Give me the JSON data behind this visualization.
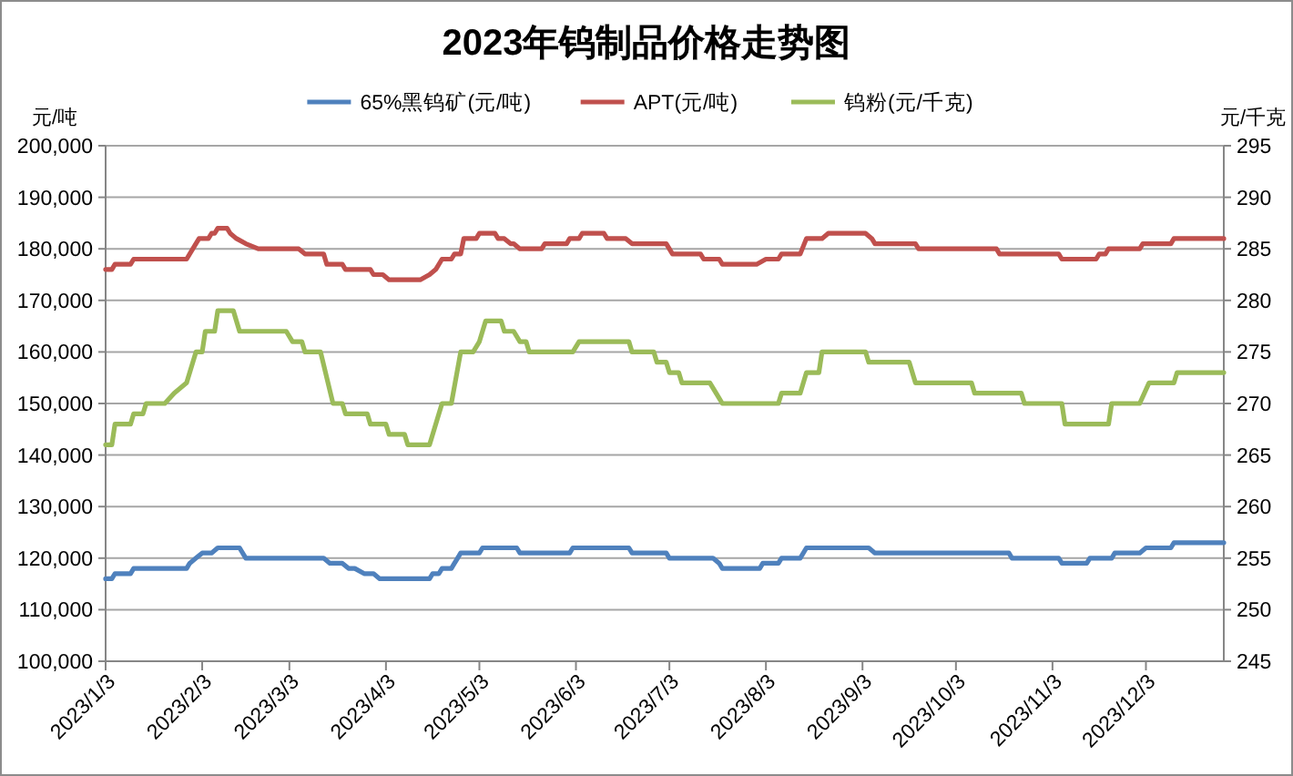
{
  "chart_data": {
    "type": "line",
    "title": "2023年钨制品价格走势图",
    "ylabel": "元/吨",
    "y2label": "元/千克",
    "legend": "top",
    "grid": "y",
    "xlim": [
      "2023-01-03",
      "2023-12-28"
    ],
    "xticks": [
      {
        "value": "2023-01-03",
        "label": "2023/1/3"
      },
      {
        "value": "2023-02-03",
        "label": "2023/2/3"
      },
      {
        "value": "2023-03-03",
        "label": "2023/3/3"
      },
      {
        "value": "2023-04-03",
        "label": "2023/4/3"
      },
      {
        "value": "2023-05-03",
        "label": "2023/5/3"
      },
      {
        "value": "2023-06-03",
        "label": "2023/6/3"
      },
      {
        "value": "2023-07-03",
        "label": "2023/7/3"
      },
      {
        "value": "2023-08-03",
        "label": "2023/8/3"
      },
      {
        "value": "2023-09-03",
        "label": "2023/9/3"
      },
      {
        "value": "2023-10-03",
        "label": "2023/10/3"
      },
      {
        "value": "2023-11-03",
        "label": "2023/11/3"
      },
      {
        "value": "2023-12-03",
        "label": "2023/12/3"
      }
    ],
    "ylim": [
      100000,
      200000
    ],
    "yticks": [
      {
        "value": 100000,
        "label": "100,000"
      },
      {
        "value": 110000,
        "label": "110,000"
      },
      {
        "value": 120000,
        "label": "120,000"
      },
      {
        "value": 130000,
        "label": "130,000"
      },
      {
        "value": 140000,
        "label": "140,000"
      },
      {
        "value": 150000,
        "label": "150,000"
      },
      {
        "value": 160000,
        "label": "160,000"
      },
      {
        "value": 170000,
        "label": "170,000"
      },
      {
        "value": 180000,
        "label": "180,000"
      },
      {
        "value": 190000,
        "label": "190,000"
      },
      {
        "value": 200000,
        "label": "200,000"
      }
    ],
    "y2lim": [
      245,
      295
    ],
    "y2ticks": [
      245,
      250,
      255,
      260,
      265,
      270,
      275,
      280,
      285,
      290,
      295
    ],
    "series": [
      {
        "name": "65%黑钨矿(元/吨)",
        "color": "#4f81bd",
        "x": [
          "2023-01-03",
          "2023-01-05",
          "2023-01-06",
          "2023-01-11",
          "2023-01-12",
          "2023-01-29",
          "2023-01-30",
          "2023-02-01",
          "2023-02-03",
          "2023-02-06",
          "2023-02-08",
          "2023-02-15",
          "2023-02-17",
          "2023-03-14",
          "2023-03-16",
          "2023-03-20",
          "2023-03-22",
          "2023-03-24",
          "2023-03-27",
          "2023-03-30",
          "2023-04-01",
          "2023-04-17",
          "2023-04-18",
          "2023-04-20",
          "2023-04-21",
          "2023-04-24",
          "2023-04-25",
          "2023-04-26",
          "2023-04-27",
          "2023-05-03",
          "2023-05-04",
          "2023-05-15",
          "2023-05-16",
          "2023-06-01",
          "2023-06-02",
          "2023-06-20",
          "2023-06-21",
          "2023-07-02",
          "2023-07-03",
          "2023-07-17",
          "2023-07-19",
          "2023-07-20",
          "2023-08-01",
          "2023-08-02",
          "2023-08-07",
          "2023-08-08",
          "2023-08-14",
          "2023-08-16",
          "2023-09-05",
          "2023-09-07",
          "2023-10-20",
          "2023-10-21",
          "2023-11-05",
          "2023-11-06",
          "2023-11-14",
          "2023-11-15",
          "2023-11-22",
          "2023-11-23",
          "2023-12-01",
          "2023-12-03",
          "2023-12-11",
          "2023-12-12",
          "2023-12-28"
        ],
        "values": [
          116000,
          116000,
          117000,
          117000,
          118000,
          118000,
          119000,
          120000,
          121000,
          121000,
          122000,
          122000,
          120000,
          120000,
          119000,
          119000,
          118000,
          118000,
          117000,
          117000,
          116000,
          116000,
          117000,
          117000,
          118000,
          118000,
          119000,
          120000,
          121000,
          121000,
          122000,
          122000,
          121000,
          121000,
          122000,
          122000,
          121000,
          121000,
          120000,
          120000,
          119000,
          118000,
          118000,
          119000,
          119000,
          120000,
          120000,
          122000,
          122000,
          121000,
          121000,
          120000,
          120000,
          119000,
          119000,
          120000,
          120000,
          121000,
          121000,
          122000,
          122000,
          123000,
          123000
        ]
      },
      {
        "name": "APT(元/吨)",
        "color": "#c0504d",
        "x": [
          "2023-01-03",
          "2023-01-05",
          "2023-01-06",
          "2023-01-11",
          "2023-01-12",
          "2023-01-29",
          "2023-01-31",
          "2023-02-02",
          "2023-02-05",
          "2023-02-06",
          "2023-02-07",
          "2023-02-08",
          "2023-02-11",
          "2023-02-12",
          "2023-02-14",
          "2023-02-17",
          "2023-02-21",
          "2023-03-06",
          "2023-03-08",
          "2023-03-14",
          "2023-03-15",
          "2023-03-20",
          "2023-03-21",
          "2023-03-29",
          "2023-03-30",
          "2023-04-02",
          "2023-04-04",
          "2023-04-14",
          "2023-04-17",
          "2023-04-19",
          "2023-04-21",
          "2023-04-24",
          "2023-04-25",
          "2023-04-27",
          "2023-04-28",
          "2023-05-02",
          "2023-05-03",
          "2023-05-08",
          "2023-05-09",
          "2023-05-11",
          "2023-05-13",
          "2023-05-14",
          "2023-05-16",
          "2023-05-23",
          "2023-05-24",
          "2023-05-31",
          "2023-06-01",
          "2023-06-04",
          "2023-06-05",
          "2023-06-12",
          "2023-06-13",
          "2023-06-19",
          "2023-06-21",
          "2023-07-02",
          "2023-07-04",
          "2023-07-13",
          "2023-07-14",
          "2023-07-19",
          "2023-07-20",
          "2023-07-31",
          "2023-08-03",
          "2023-08-07",
          "2023-08-08",
          "2023-08-14",
          "2023-08-16",
          "2023-08-21",
          "2023-08-23",
          "2023-09-04",
          "2023-09-06",
          "2023-09-07",
          "2023-09-20",
          "2023-09-21",
          "2023-10-16",
          "2023-10-17",
          "2023-11-05",
          "2023-11-06",
          "2023-11-17",
          "2023-11-18",
          "2023-11-20",
          "2023-11-21",
          "2023-12-01",
          "2023-12-02",
          "2023-12-11",
          "2023-12-12",
          "2023-12-28"
        ],
        "values": [
          176000,
          176000,
          177000,
          177000,
          178000,
          178000,
          180000,
          182000,
          182000,
          183000,
          183000,
          184000,
          184000,
          183000,
          182000,
          181000,
          180000,
          180000,
          179000,
          179000,
          177000,
          177000,
          176000,
          176000,
          175000,
          175000,
          174000,
          174000,
          175000,
          176000,
          178000,
          178000,
          179000,
          179000,
          182000,
          182000,
          183000,
          183000,
          182000,
          182000,
          181000,
          181000,
          180000,
          180000,
          181000,
          181000,
          182000,
          182000,
          183000,
          183000,
          182000,
          182000,
          181000,
          181000,
          179000,
          179000,
          178000,
          178000,
          177000,
          177000,
          178000,
          178000,
          179000,
          179000,
          182000,
          182000,
          183000,
          183000,
          182000,
          181000,
          181000,
          180000,
          180000,
          179000,
          179000,
          178000,
          178000,
          179000,
          179000,
          180000,
          180000,
          181000,
          181000,
          182000,
          182000
        ]
      },
      {
        "name": "钨粉(元/千克)",
        "color": "#9bbb59",
        "axis": "y2",
        "x": [
          "2023-01-03",
          "2023-01-05",
          "2023-01-06",
          "2023-01-11",
          "2023-01-12",
          "2023-01-15",
          "2023-01-16",
          "2023-01-22",
          "2023-01-25",
          "2023-01-29",
          "2023-02-01",
          "2023-02-03",
          "2023-02-04",
          "2023-02-07",
          "2023-02-08",
          "2023-02-13",
          "2023-02-15",
          "2023-03-02",
          "2023-03-04",
          "2023-03-07",
          "2023-03-08",
          "2023-03-13",
          "2023-03-17",
          "2023-03-20",
          "2023-03-21",
          "2023-03-28",
          "2023-03-29",
          "2023-04-03",
          "2023-04-04",
          "2023-04-09",
          "2023-04-10",
          "2023-04-17",
          "2023-04-21",
          "2023-04-24",
          "2023-04-27",
          "2023-05-01",
          "2023-05-03",
          "2023-05-05",
          "2023-05-10",
          "2023-05-11",
          "2023-05-14",
          "2023-05-16",
          "2023-05-18",
          "2023-05-19",
          "2023-06-02",
          "2023-06-04",
          "2023-06-20",
          "2023-06-21",
          "2023-06-28",
          "2023-06-29",
          "2023-07-02",
          "2023-07-03",
          "2023-07-06",
          "2023-07-07",
          "2023-07-16",
          "2023-07-18",
          "2023-07-20",
          "2023-08-07",
          "2023-08-08",
          "2023-08-14",
          "2023-08-16",
          "2023-08-20",
          "2023-08-21",
          "2023-09-04",
          "2023-09-05",
          "2023-09-18",
          "2023-09-20",
          "2023-10-08",
          "2023-10-09",
          "2023-10-24",
          "2023-10-25",
          "2023-11-06",
          "2023-11-07",
          "2023-11-21",
          "2023-11-22",
          "2023-12-01",
          "2023-12-04",
          "2023-12-12",
          "2023-12-13",
          "2023-12-28"
        ],
        "values": [
          266,
          266,
          268,
          268,
          269,
          269,
          270,
          270,
          271,
          272,
          275,
          275,
          277,
          277,
          279,
          279,
          277,
          277,
          276,
          276,
          275,
          275,
          270,
          270,
          269,
          269,
          268,
          268,
          267,
          267,
          266,
          266,
          270,
          270,
          275,
          275,
          276,
          278,
          278,
          277,
          277,
          276,
          276,
          275,
          275,
          276,
          276,
          275,
          275,
          274,
          274,
          273,
          273,
          272,
          272,
          271,
          270,
          270,
          271,
          271,
          273,
          273,
          275,
          275,
          274,
          274,
          272,
          272,
          271,
          271,
          270,
          270,
          268,
          268,
          270,
          270,
          272,
          272,
          273,
          273
        ]
      }
    ]
  }
}
